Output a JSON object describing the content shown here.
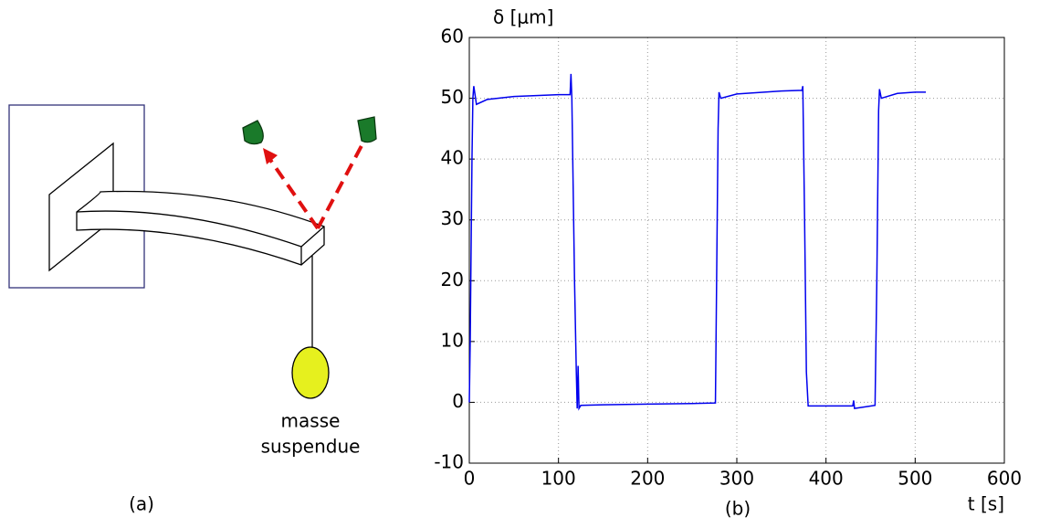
{
  "diagram": {
    "caption": "(a)",
    "mass_label_lines": [
      "masse",
      "suspendue"
    ]
  },
  "chart_data": {
    "type": "line",
    "caption": "(b)",
    "x_label": "t [s]",
    "y_label": "δ [μm]",
    "xlim": [
      0,
      600
    ],
    "ylim": [
      -10,
      60
    ],
    "xticks": [
      0,
      100,
      200,
      300,
      400,
      500,
      600
    ],
    "yticks": [
      -10,
      0,
      10,
      20,
      30,
      40,
      50,
      60
    ],
    "grid": true,
    "series": [
      {
        "color": "#0000ee",
        "x": [
          0,
          1,
          3,
          4,
          5,
          8,
          20,
          50,
          100,
          113,
          114,
          115,
          118,
          120,
          121,
          122,
          123,
          125,
          150,
          200,
          250,
          276,
          279,
          280,
          282,
          300,
          350,
          373,
          374,
          376,
          378,
          380,
          400,
          430,
          431,
          432,
          455,
          457,
          459,
          460,
          462,
          480,
          500,
          512
        ],
        "values": [
          0,
          10,
          40,
          50,
          52,
          49,
          49.8,
          50.3,
          50.6,
          50.6,
          54,
          50,
          20,
          5,
          -1,
          6,
          -1,
          -0.5,
          -0.4,
          -0.3,
          -0.2,
          -0.1,
          45,
          51,
          50,
          50.7,
          51.2,
          51.3,
          52,
          30,
          5,
          -0.6,
          -0.6,
          -0.6,
          0.3,
          -1,
          -0.5,
          20,
          48,
          51.5,
          50,
          50.8,
          51,
          51
        ]
      }
    ]
  }
}
